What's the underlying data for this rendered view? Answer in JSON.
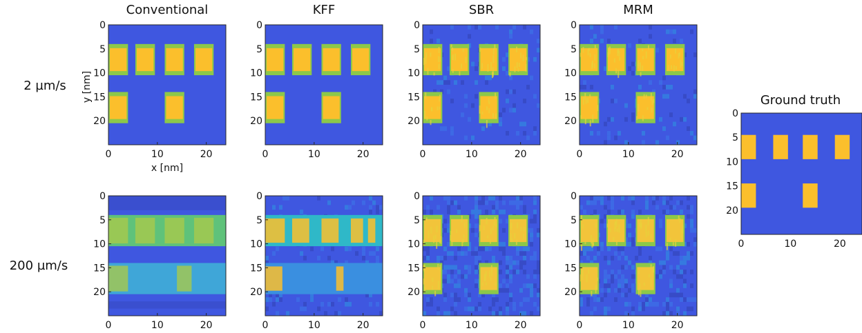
{
  "chart_data": {
    "type": "heatmap",
    "column_titles": [
      "Conventional",
      "KFF",
      "SBR",
      "MRM"
    ],
    "row_labels": [
      "2 µm/s",
      "200 µm/s"
    ],
    "ground_truth_title": "Ground truth",
    "xlabel": "x [nm]",
    "ylabel": "y [nm]",
    "xlim": [
      0,
      24
    ],
    "ylim": [
      25,
      0
    ],
    "x_ticks": [
      0,
      10,
      20
    ],
    "y_ticks": [
      0,
      5,
      10,
      15,
      20
    ],
    "colors": {
      "background": "#3f57e0",
      "feature": "#fbbf2c",
      "edge": "#8cc84a",
      "mid": "#35b7cf"
    },
    "ground_truth_features": [
      {
        "x": [
          0,
          3
        ],
        "y": [
          4.5,
          9.5
        ]
      },
      {
        "x": [
          6.5,
          9.5
        ],
        "y": [
          4.5,
          9.5
        ]
      },
      {
        "x": [
          12.5,
          15.5
        ],
        "y": [
          4.5,
          9.5
        ]
      },
      {
        "x": [
          19,
          22
        ],
        "y": [
          4.5,
          9.5
        ]
      },
      {
        "x": [
          0,
          3
        ],
        "y": [
          14.5,
          19.5
        ]
      },
      {
        "x": [
          12.5,
          15.5
        ],
        "y": [
          14.5,
          19.5
        ]
      }
    ],
    "reconstructed_features": [
      {
        "x": [
          0,
          4
        ],
        "y": [
          4,
          10.5
        ]
      },
      {
        "x": [
          5.5,
          9.5
        ],
        "y": [
          4,
          10.5
        ]
      },
      {
        "x": [
          11.5,
          15.5
        ],
        "y": [
          4,
          10.5
        ]
      },
      {
        "x": [
          17.5,
          21.5
        ],
        "y": [
          4,
          10.5
        ]
      },
      {
        "x": [
          0,
          4
        ],
        "y": [
          14,
          20.5
        ]
      },
      {
        "x": [
          11.5,
          15.5
        ],
        "y": [
          14,
          20.5
        ]
      }
    ],
    "notes_200": {
      "conventional": "horizontal bands y 4-10.5 and 14-20.5 blurred along x",
      "kff": "partially resolved features in bands",
      "sbr": "features resolved with noise",
      "mrm": "features resolved with noise"
    }
  }
}
